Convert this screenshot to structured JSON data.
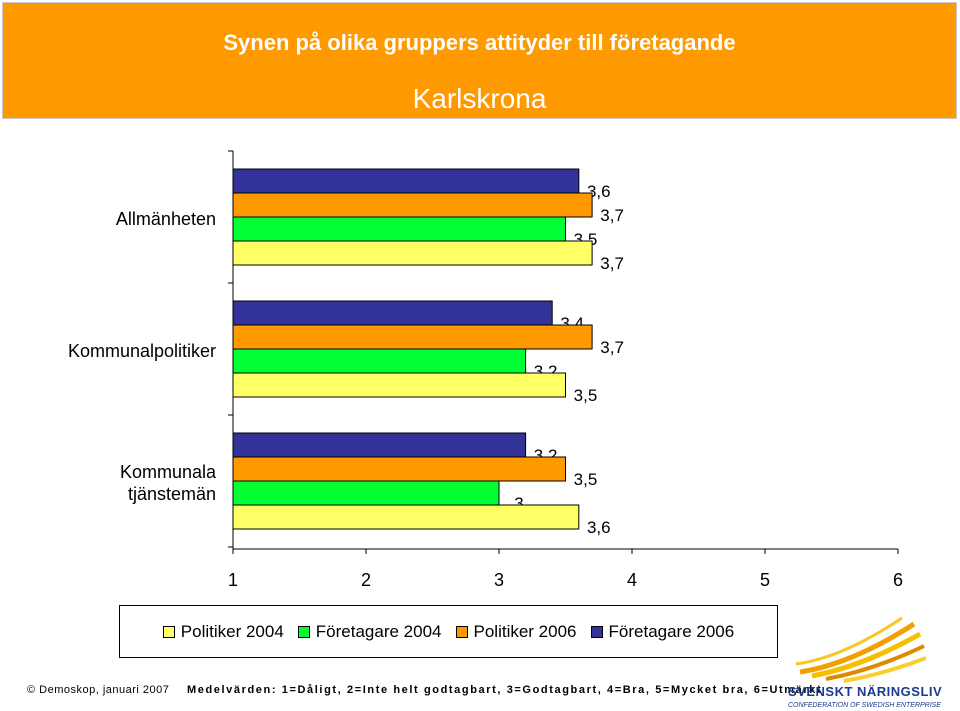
{
  "header": {
    "title": "Synen på olika gruppers attityder till företagande",
    "subtitle": "Karlskrona"
  },
  "colors": {
    "header_bg": "#ff9900",
    "politiker_2004": "#ffff66",
    "foretagare_2004": "#00ff33",
    "politiker_2006": "#ff9900",
    "foretagare_2006": "#333399"
  },
  "chart_data": {
    "type": "bar",
    "orientation": "horizontal",
    "title": "Karlskrona",
    "categories": [
      "Allmänheten",
      "Kommunalpolitiker",
      "Kommunala tjänstemän"
    ],
    "category_lines": [
      [
        "Allmänheten"
      ],
      [
        "Kommunalpolitiker"
      ],
      [
        "Kommunala",
        "tjänstemän"
      ]
    ],
    "series": [
      {
        "name": "Företagare 2006",
        "values": [
          3.6,
          3.4,
          3.2
        ],
        "labels": [
          "3,6",
          "3,4",
          "3,2"
        ],
        "color": "#333399"
      },
      {
        "name": "Politiker 2006",
        "values": [
          3.7,
          3.7,
          3.5
        ],
        "labels": [
          "3,7",
          "3,7",
          "3,5"
        ],
        "color": "#ff9900"
      },
      {
        "name": "Företagare 2004",
        "values": [
          3.5,
          3.2,
          3.0
        ],
        "labels": [
          "3,5",
          "3,2",
          "3"
        ],
        "color": "#00ff33"
      },
      {
        "name": "Politiker 2004",
        "values": [
          3.7,
          3.5,
          3.6
        ],
        "labels": [
          "3,7",
          "3,5",
          "3,6"
        ],
        "color": "#ffff66"
      }
    ],
    "xlim": [
      1,
      6
    ],
    "xticks": [
      "1",
      "2",
      "3",
      "4",
      "5",
      "6"
    ],
    "xlabel": "",
    "ylabel": "",
    "grid": false
  },
  "legend": [
    {
      "label": "Politiker 2004",
      "color": "#ffff66"
    },
    {
      "label": "Företagare 2004",
      "color": "#00ff33"
    },
    {
      "label": "Politiker 2006",
      "color": "#ff9900"
    },
    {
      "label": "Företagare 2006",
      "color": "#333399"
    }
  ],
  "footer": {
    "copyright": "© Demoskop, januari 2007",
    "scale": "Medelvärden: 1=Dåligt, 2=Inte helt godtagbart, 3=Godtagbart, 4=Bra, 5=Mycket bra, 6=Utmärkt"
  },
  "logo": {
    "name": "SVENSKT NÄRINGSLIV",
    "subtitle": "CONFEDERATION OF SWEDISH ENTERPRISE"
  }
}
